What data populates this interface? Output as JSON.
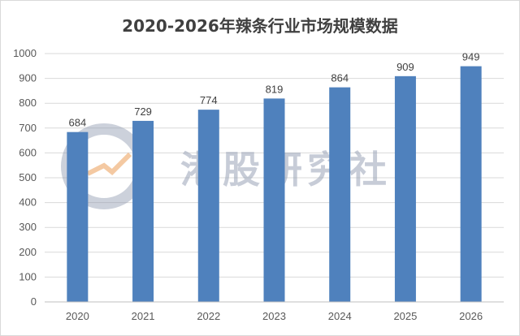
{
  "watermark": {
    "text": "港股研究社"
  },
  "colors": {
    "bar": "#4f81bd",
    "grid": "#d9d9d9",
    "axis": "#bfbfbf"
  },
  "chart_data": {
    "type": "bar",
    "title": "2020-2026年辣条行业市场规模数据",
    "categories": [
      "2020",
      "2021",
      "2022",
      "2023",
      "2024",
      "2025",
      "2026"
    ],
    "values": [
      684,
      729,
      774,
      819,
      864,
      909,
      949
    ],
    "data_labels": [
      "684",
      "729",
      "774",
      "819",
      "864",
      "909",
      "949"
    ],
    "ylim": [
      0,
      1000
    ],
    "yticks": [
      0,
      100,
      200,
      300,
      400,
      500,
      600,
      700,
      800,
      900,
      1000
    ],
    "grid": true,
    "legend": "none"
  }
}
